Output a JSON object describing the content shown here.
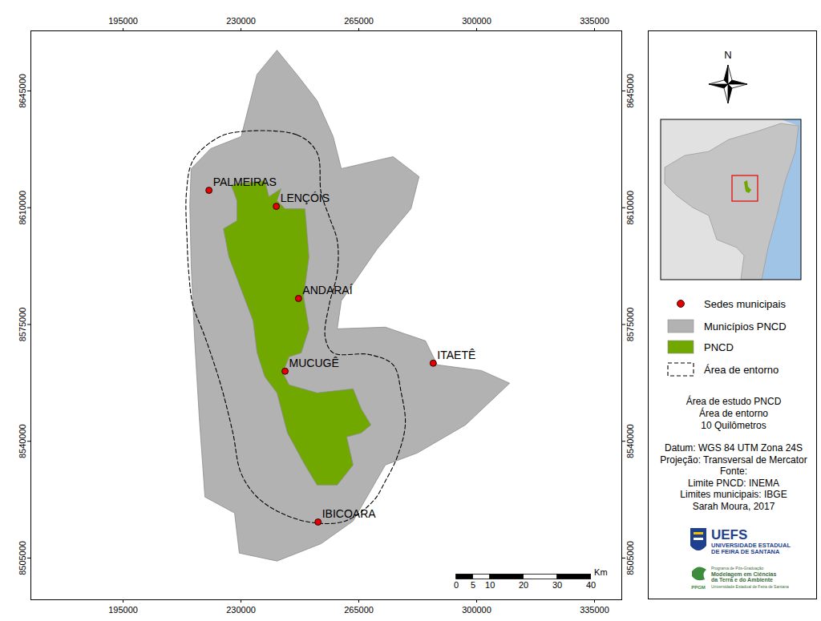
{
  "chart_data": {
    "type": "map",
    "xlim": [
      167600,
      343100
    ],
    "ylim": [
      8492500,
      8663000
    ],
    "xticks": [
      195000,
      230000,
      265000,
      300000,
      335000
    ],
    "yticks": [
      8505000,
      8540000,
      8575000,
      8610000,
      8645000
    ],
    "layers": [
      {
        "name": "Sedes municipais",
        "type": "scatter",
        "marker": "circle",
        "color": "#e60000",
        "labels": [
          "PALMEIRAS",
          "LENÇÓIS",
          "ANDARAÍ",
          "MUCUGÊ",
          "ITAETÊ",
          "IBICOARA"
        ],
        "x": [
          220500,
          240500,
          247100,
          243100,
          287100,
          252900
        ],
        "y": [
          8615200,
          8610400,
          8582800,
          8561000,
          8563400,
          8515800
        ]
      },
      {
        "name": "Municípios PNCD",
        "type": "polygon",
        "color": "#b2b2b2",
        "x": [
          234800,
          240700,
          247100,
          252600,
          257400,
          259800,
          275200,
          282900,
          280500,
          270500,
          259800,
          258600,
          272900,
          284800,
          288300,
          301400,
          309800,
          296700,
          282400,
          272900,
          268100,
          263300,
          253800,
          240700,
          229500,
          228100,
          219300,
          217600,
          216200,
          215200,
          214800,
          215200,
          221000,
          230000
        ],
        "y": [
          8650000,
          8657200,
          8649300,
          8642100,
          8631300,
          8621700,
          8625300,
          8619300,
          8609700,
          8597700,
          8582100,
          8573700,
          8574200,
          8570100,
          8562900,
          8561200,
          8557400,
          8544900,
          8536500,
          8532900,
          8524500,
          8516100,
          8509300,
          8504100,
          8506500,
          8518500,
          8523300,
          8547300,
          8571300,
          8592900,
          8610900,
          8621700,
          8627700,
          8631300
        ]
      },
      {
        "name": "PNCD",
        "type": "polygon",
        "color": "#70a800",
        "x": [
          227100,
          237100,
          238300,
          241900,
          240700,
          243100,
          249000,
          250200,
          248600,
          250200,
          247900,
          244300,
          242400,
          244300,
          252600,
          263300,
          265700,
          268600,
          265700,
          261400,
          263300,
          258600,
          252600,
          249000,
          243800,
          240700,
          237100,
          234800,
          233600,
          230000,
          226400,
          224800,
          228800,
          228800
        ],
        "y": [
          8616900,
          8618100,
          8613300,
          8615700,
          8612100,
          8609700,
          8609700,
          8595300,
          8583300,
          8573700,
          8566500,
          8565300,
          8560500,
          8556900,
          8554500,
          8555700,
          8549700,
          8544900,
          8542500,
          8541300,
          8532900,
          8526900,
          8526900,
          8532900,
          8542500,
          8554500,
          8559300,
          8566500,
          8576100,
          8585700,
          8595300,
          8603700,
          8606100,
          8612100
        ]
      },
      {
        "name": "Área de entorno",
        "type": "line",
        "line_style": "dashed",
        "color": "#000000",
        "x": [
          227600,
          246700,
          252600,
          253800,
          256200,
          258600,
          258600,
          256200,
          255000,
          257400,
          268100,
          275200,
          277600,
          278800,
          276400,
          272900,
          269300,
          261000,
          251400,
          241900,
          234800,
          230000,
          227600,
          224000,
          219300,
          215700,
          214500,
          214000,
          213800,
          215700,
          221700
        ],
        "y": [
          8632500,
          8631800,
          8626500,
          8614500,
          8607300,
          8600100,
          8590500,
          8580900,
          8571300,
          8566500,
          8566000,
          8562900,
          8554500,
          8544900,
          8535300,
          8528100,
          8522100,
          8516100,
          8515600,
          8518500,
          8523300,
          8530500,
          8542500,
          8556900,
          8571300,
          8580900,
          8590500,
          8600100,
          8614500,
          8624100,
          8630100
        ]
      }
    ],
    "north_label": "N",
    "scale_bar": {
      "unit": "Km",
      "ticks": [
        0,
        5,
        10,
        20,
        30,
        40
      ]
    },
    "notes": [
      "Área de estudo PNCD",
      "Área de entorno",
      "10 Quilômetros"
    ],
    "source_notes": [
      "Datum: WGS 84 UTM Zona 24S",
      "Projeção: Transversal de Mercator",
      "Fonte:",
      "Limite PNCD: INEMA",
      "Limites municipais: IBGE",
      "Sarah Moura, 2017"
    ],
    "logos": [
      {
        "name": "UEFS",
        "text": [
          "UNIVERSIDADE ESTADUAL",
          "DE FEIRA DE SANTANA"
        ]
      },
      {
        "name": "PPGM",
        "text": [
          "Programa de Pós-Graduação",
          "Modelagem em Ciências",
          "da Terra e do Ambiente",
          "Universidade Estadual de Feira de Santana"
        ]
      }
    ]
  }
}
